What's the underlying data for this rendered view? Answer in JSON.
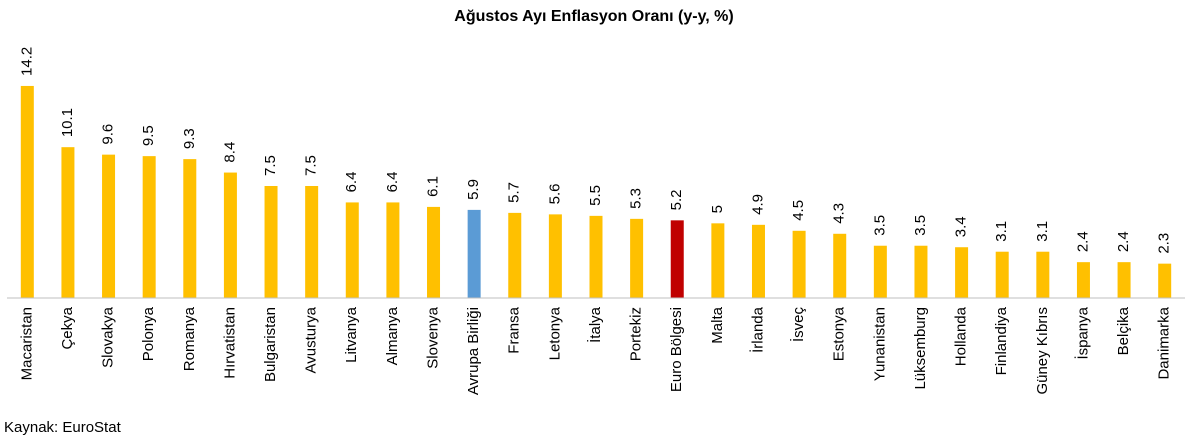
{
  "chart_data": {
    "type": "bar",
    "title": "Ağustos Ayı Enflasyon Oranı (y-y, %)",
    "source": "Kaynak: EuroStat",
    "categories": [
      "Macaristan",
      "Çekya",
      "Slovakya",
      "Polonya",
      "Romanya",
      "Hırvatistan",
      "Bulgaristan",
      "Avusturya",
      "Litvanya",
      "Almanya",
      "Slovenya",
      "Avrupa Birliği",
      "Fransa",
      "Letonya",
      "İtalya",
      "Portekiz",
      "Euro Bölgesi",
      "Malta",
      "İrlanda",
      "İsveç",
      "Estonya",
      "Yunanistan",
      "Lüksemburg",
      "Hollanda",
      "Finlandiya",
      "Güney Kıbrıs",
      "İspanya",
      "Belçika",
      "Danimarka"
    ],
    "values": [
      14.2,
      10.1,
      9.6,
      9.5,
      9.3,
      8.4,
      7.5,
      7.5,
      6.4,
      6.4,
      6.1,
      5.9,
      5.7,
      5.6,
      5.5,
      5.3,
      5.2,
      5,
      4.9,
      4.5,
      4.3,
      3.5,
      3.5,
      3.4,
      3.1,
      3.1,
      2.4,
      2.4,
      2.3
    ],
    "colors": [
      "#FFC000",
      "#FFC000",
      "#FFC000",
      "#FFC000",
      "#FFC000",
      "#FFC000",
      "#FFC000",
      "#FFC000",
      "#FFC000",
      "#FFC000",
      "#FFC000",
      "#5B9BD5",
      "#FFC000",
      "#FFC000",
      "#FFC000",
      "#FFC000",
      "#C00000",
      "#FFC000",
      "#FFC000",
      "#FFC000",
      "#FFC000",
      "#FFC000",
      "#FFC000",
      "#FFC000",
      "#FFC000",
      "#FFC000",
      "#FFC000",
      "#FFC000",
      "#FFC000"
    ],
    "ylim": [
      0,
      15
    ],
    "data_labels": true
  }
}
